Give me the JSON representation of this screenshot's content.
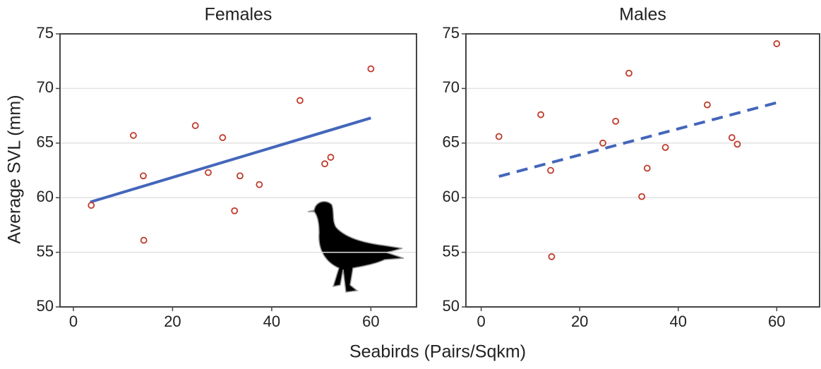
{
  "ylabel": "Average SVL (mm)",
  "xlabel": "Seabirds (Pairs/Sqkm)",
  "chart_data": [
    {
      "type": "scatter",
      "title": "Females",
      "x": [
        3.6,
        12.1,
        14.1,
        14.2,
        24.6,
        27.2,
        30.1,
        32.5,
        33.6,
        37.5,
        45.7,
        50.7,
        51.9,
        60.0
      ],
      "values": [
        59.3,
        65.7,
        62.0,
        56.1,
        66.6,
        62.3,
        65.5,
        58.8,
        62.0,
        61.2,
        68.9,
        63.1,
        63.7,
        71.8
      ],
      "color": "#c0392b",
      "trend": {
        "x": [
          3.4,
          60.0
        ],
        "values": [
          59.6,
          67.3
        ],
        "color": "#4466bb",
        "dash": "solid"
      },
      "xlim": [
        -2.7,
        69.2
      ],
      "ylim": [
        50,
        75
      ],
      "xticks": [
        0,
        20,
        40,
        60
      ],
      "yticks": [
        50,
        55,
        60,
        65,
        70,
        75
      ],
      "grid": true
    },
    {
      "type": "scatter",
      "title": "Males",
      "x": [
        3.6,
        12.1,
        14.1,
        14.3,
        24.7,
        27.3,
        30.0,
        32.6,
        33.7,
        37.4,
        45.9,
        50.9,
        52.0,
        60.0
      ],
      "values": [
        65.6,
        67.6,
        62.5,
        54.6,
        65.0,
        67.0,
        71.4,
        60.1,
        62.7,
        64.6,
        68.5,
        65.5,
        64.9,
        74.1
      ],
      "color": "#c0392b",
      "trend": {
        "x": [
          3.6,
          60.0
        ],
        "values": [
          61.95,
          68.7
        ],
        "color": "#4466bb",
        "dash": "dashed"
      },
      "xlim": [
        -3.1,
        68.7
      ],
      "ylim": [
        50,
        75
      ],
      "xticks": [
        0,
        20,
        40,
        60
      ],
      "yticks": [
        50,
        55,
        60,
        65,
        70,
        75
      ],
      "grid": true
    }
  ]
}
